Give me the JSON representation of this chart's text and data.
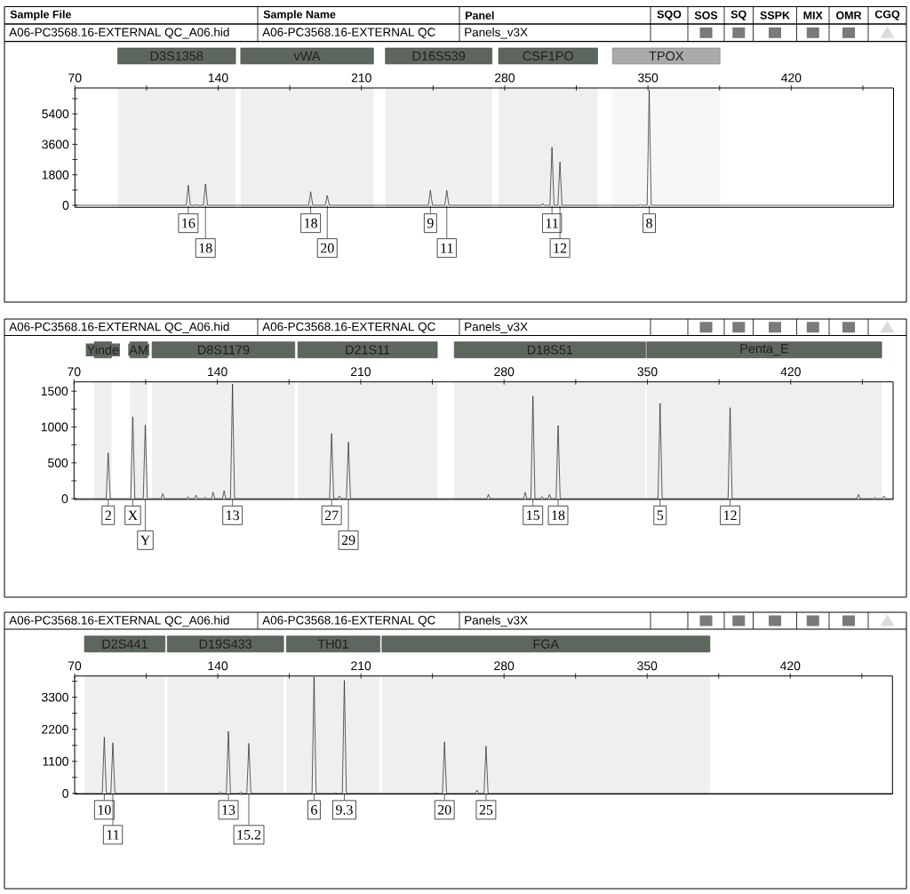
{
  "chart_data": [
    {
      "type": "line",
      "color": "#1e1e1e",
      "x": [
        70,
        124.4,
        125.4,
        126.4,
        128.9,
        129.4,
        129.9,
        132.8,
        133.8,
        134.8,
        184.2,
        185.2,
        186.2,
        192.3,
        193.3,
        194.3,
        242.7,
        243.7,
        244.7,
        250.7,
        251.7,
        252.7,
        297.9,
        298.5,
        299.1,
        302.1,
        303.1,
        304.1,
        306.0,
        307.0,
        308.0,
        345.6,
        346.2,
        346.8,
        349.6,
        350.6,
        351.6,
        470
      ],
      "values": [
        0,
        0,
        1190,
        0,
        0,
        40,
        0,
        0,
        1260,
        0,
        0,
        800,
        0,
        0,
        580,
        0,
        0,
        880,
        0,
        0,
        880,
        0,
        0,
        110,
        0,
        0,
        3430,
        0,
        0,
        2560,
        0,
        0,
        60,
        0,
        0,
        6800,
        0,
        0
      ],
      "xlim": [
        70,
        470
      ],
      "xticks": [
        70,
        {
          "value": 105,
          "label": null
        },
        140,
        {
          "value": 175,
          "label": null
        },
        210,
        {
          "value": 245,
          "label": null
        },
        280,
        {
          "value": 315,
          "label": null
        },
        350,
        {
          "value": 385,
          "label": null
        },
        420,
        {
          "value": 455,
          "label": null
        }
      ],
      "ylim": [
        -120,
        6930
      ],
      "yticks": [
        0,
        {
          "value": 900,
          "label": null
        },
        1800,
        {
          "value": 2700,
          "label": null
        },
        3600,
        {
          "value": 4500,
          "label": null
        },
        5400,
        {
          "value": 6300,
          "label": null
        }
      ],
      "bands": [
        {
          "axis": "x",
          "from": 90.9,
          "to": 148.5,
          "label": "D3S1358",
          "color": "#eeefee"
        },
        {
          "axis": "x",
          "from": 151.0,
          "to": 215.9,
          "label": "vWA",
          "color": "#eeefee"
        },
        {
          "axis": "x",
          "from": 221.7,
          "to": 273.8,
          "label": "D16S539",
          "color": "#eeefee"
        },
        {
          "axis": "x",
          "from": 277.0,
          "to": 325.4,
          "label": "CSF1PO",
          "color": "#eeefee"
        },
        {
          "axis": "x",
          "from": 332.7,
          "to": 385.2,
          "label": "TPOX",
          "color": "#f6f6f6"
        }
      ],
      "annotations": [
        "Sample File",
        "Sample Name",
        "Panel",
        "SQO",
        "SOS",
        "SQ",
        "SSPK",
        "MIX",
        "OMR",
        "CGQ",
        "A06-PC3568.16-EXTERNAL QC_A06.hid",
        "A06-PC3568.16-EXTERNAL QC",
        "Panels_v3X",
        {
          "text": "16",
          "x": 125.4,
          "y": 0
        },
        {
          "text": "18",
          "x": 133.8,
          "y": 0
        },
        {
          "text": "18",
          "x": 185.2,
          "y": 0
        },
        {
          "text": "20",
          "x": 193.3,
          "y": 0
        },
        {
          "text": "9",
          "x": 243.7,
          "y": 0
        },
        {
          "text": "11",
          "x": 251.7,
          "y": 0
        },
        {
          "text": "11",
          "x": 303.1,
          "y": 0
        },
        {
          "text": "12",
          "x": 307.0,
          "y": 0
        },
        {
          "text": "8",
          "x": 350.6,
          "y": 0
        }
      ]
    },
    {
      "type": "line",
      "color": "#1e1e1e",
      "x": [
        70,
        85.7,
        86.7,
        87.7,
        97.7,
        98.7,
        99.7,
        103.8,
        104.8,
        105.8,
        112.5,
        113.3,
        114.1,
        124.8,
        125.6,
        126.4,
        128.7,
        129.5,
        130.3,
        133.2,
        134.0,
        134.8,
        137.1,
        137.9,
        138.7,
        142.5,
        143.3,
        144.1,
        146.4,
        147.4,
        148.4,
        194.8,
        195.8,
        196.8,
        198.8,
        199.6,
        200.4,
        203.0,
        204.0,
        205.0,
        271.6,
        272.4,
        273.2,
        289.5,
        290.3,
        291.1,
        293.1,
        294.1,
        295.1,
        297.8,
        298.6,
        299.4,
        301.4,
        302.2,
        303.0,
        305.4,
        306.4,
        307.4,
        355.2,
        356.2,
        357.2,
        389.4,
        390.4,
        391.4,
        452.3,
        453.1,
        453.9,
        460.3,
        461.1,
        461.9,
        464.7,
        465.5,
        466.3,
        470
      ],
      "values": [
        0,
        0,
        640,
        0,
        0,
        1140,
        0,
        0,
        1030,
        0,
        0,
        70,
        0,
        0,
        30,
        0,
        0,
        50,
        0,
        0,
        20,
        0,
        0,
        90,
        0,
        0,
        110,
        0,
        0,
        1600,
        0,
        0,
        910,
        0,
        0,
        40,
        0,
        0,
        790,
        0,
        0,
        60,
        0,
        0,
        90,
        0,
        0,
        1430,
        0,
        0,
        30,
        0,
        0,
        60,
        0,
        0,
        1020,
        0,
        0,
        1330,
        0,
        0,
        1270,
        0,
        0,
        60,
        0,
        0,
        20,
        0,
        0,
        40,
        0,
        0
      ],
      "xlim": [
        70,
        470
      ],
      "xticks": [
        70,
        {
          "value": 105,
          "label": null
        },
        140,
        {
          "value": 175,
          "label": null
        },
        210,
        {
          "value": 245,
          "label": null
        },
        280,
        {
          "value": 315,
          "label": null
        },
        350,
        {
          "value": 385,
          "label": null
        },
        420,
        {
          "value": 455,
          "label": null
        }
      ],
      "ylim": [
        -10,
        1630
      ],
      "yticks": [
        0,
        {
          "value": 250,
          "label": null
        },
        500,
        {
          "value": 750,
          "label": null
        },
        1000,
        {
          "value": 1250,
          "label": null
        },
        1500
      ],
      "bands": [
        {
          "axis": "x",
          "from": 79.9,
          "to": 88.3,
          "label": "Yinde",
          "color": "#eeefee"
        },
        {
          "axis": "x",
          "from": 97.3,
          "to": 105.9,
          "label": "AM",
          "color": "#eeefee"
        },
        {
          "axis": "x",
          "from": 108.1,
          "to": 177.8,
          "label": "D8S1179",
          "color": "#eeefee"
        },
        {
          "axis": "x",
          "from": 179.3,
          "to": 247.4,
          "label": "D21S11",
          "color": "#eeefee"
        },
        {
          "axis": "x",
          "from": 255.7,
          "to": 349.1,
          "label": "D18S51",
          "color": "#eeefee"
        },
        {
          "axis": "x",
          "from": 349.7,
          "to": 464.4,
          "label": "Penta_E",
          "color": "#eeefee"
        }
      ],
      "annotations": [
        "A06-PC3568.16-EXTERNAL QC_A06.hid",
        "A06-PC3568.16-EXTERNAL QC",
        "Panels_v3X",
        {
          "text": "2",
          "x": 86.7,
          "y": 0
        },
        {
          "text": "X",
          "x": 98.7,
          "y": 0
        },
        {
          "text": "Y",
          "x": 104.8,
          "y": 0
        },
        {
          "text": "13",
          "x": 147.4,
          "y": 0
        },
        {
          "text": "27",
          "x": 195.8,
          "y": 0
        },
        {
          "text": "29",
          "x": 204.0,
          "y": 0
        },
        {
          "text": "15",
          "x": 294.1,
          "y": 0
        },
        {
          "text": "18",
          "x": 306.4,
          "y": 0
        },
        {
          "text": "5",
          "x": 356.2,
          "y": 0
        },
        {
          "text": "12",
          "x": 390.4,
          "y": 0
        }
      ]
    },
    {
      "type": "line",
      "color": "#1e1e1e",
      "x": [
        70,
        83.5,
        84.5,
        85.5,
        87.7,
        88.7,
        89.7,
        140.6,
        141.4,
        142.2,
        144.2,
        145.2,
        146.2,
        150.4,
        151.2,
        152.0,
        154.2,
        155.2,
        156.2,
        186.1,
        187.1,
        188.1,
        196.7,
        197.5,
        198.3,
        200.9,
        201.9,
        202.9,
        245.7,
        246.5,
        247.3,
        249.9,
        250.9,
        251.9,
        266.0,
        266.8,
        267.6,
        270.2,
        271.2,
        272.2,
        470
      ],
      "values": [
        0,
        0,
        1930,
        0,
        0,
        1740,
        0,
        0,
        60,
        0,
        0,
        2130,
        0,
        0,
        60,
        0,
        0,
        1720,
        0,
        0,
        4000,
        0,
        0,
        30,
        0,
        0,
        3880,
        0,
        0,
        20,
        0,
        0,
        1770,
        0,
        0,
        110,
        0,
        0,
        1620,
        0,
        0
      ],
      "xlim": [
        70,
        470
      ],
      "xticks": [
        70,
        {
          "value": 105,
          "label": null
        },
        140,
        {
          "value": 175,
          "label": null
        },
        210,
        {
          "value": 245,
          "label": null
        },
        280,
        {
          "value": 315,
          "label": null
        },
        350,
        {
          "value": 385,
          "label": null
        },
        420,
        {
          "value": 455,
          "label": null
        }
      ],
      "ylim": [
        -20,
        4030
      ],
      "yticks": [
        0,
        {
          "value": 550,
          "label": null
        },
        1100,
        {
          "value": 1650,
          "label": null
        },
        2200,
        {
          "value": 2750,
          "label": null
        },
        3300,
        {
          "value": 3850,
          "label": null
        }
      ],
      "bands": [
        {
          "axis": "x",
          "from": 74.8,
          "to": 114.2,
          "label": "D2S441",
          "color": "#eeefee"
        },
        {
          "axis": "x",
          "from": 115.3,
          "to": 172.2,
          "label": "D19S433",
          "color": "#eeefee"
        },
        {
          "axis": "x",
          "from": 173.6,
          "to": 219.3,
          "label": "TH01",
          "color": "#eeefee"
        },
        {
          "axis": "x",
          "from": 220.3,
          "to": 380.7,
          "label": "FGA",
          "color": "#eeefee"
        }
      ],
      "annotations": [
        "A06-PC3568.16-EXTERNAL QC_A06.hid",
        "A06-PC3568.16-EXTERNAL QC",
        "Panels_v3X",
        {
          "text": "10",
          "x": 84.5,
          "y": 0
        },
        {
          "text": "11",
          "x": 88.7,
          "y": 0
        },
        {
          "text": "13",
          "x": 145.2,
          "y": 0
        },
        {
          "text": "15.2",
          "x": 155.2,
          "y": 0
        },
        {
          "text": "6",
          "x": 187.1,
          "y": 0
        },
        {
          "text": "9.3",
          "x": 201.9,
          "y": 0
        },
        {
          "text": "20",
          "x": 250.9,
          "y": 0
        },
        {
          "text": "25",
          "x": 271.2,
          "y": 0
        }
      ]
    }
  ]
}
